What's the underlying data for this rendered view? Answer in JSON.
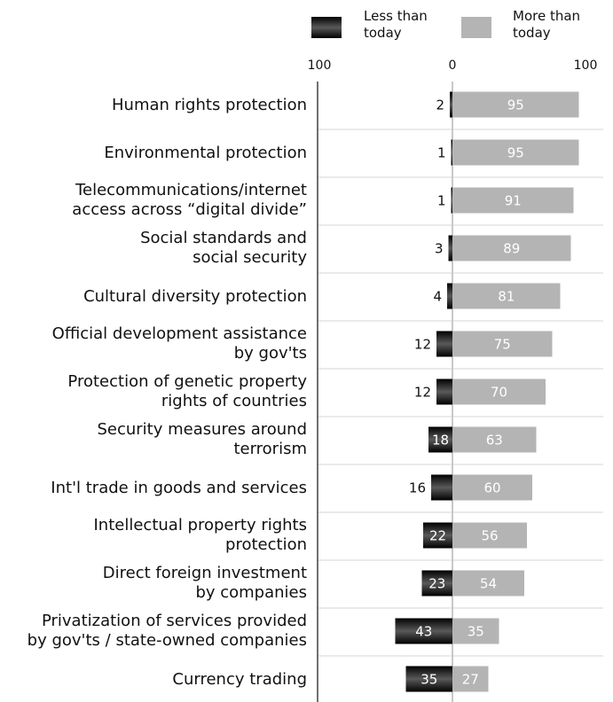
{
  "chart_data": {
    "type": "bar",
    "orientation": "horizontal",
    "stacking": "diverging",
    "categories": [
      [
        "Human rights protection"
      ],
      [
        "Environmental protection"
      ],
      [
        "Telecommunications/internet",
        "access across “digital divide”"
      ],
      [
        "Social standards and",
        "social security"
      ],
      [
        "Cultural diversity protection"
      ],
      [
        "Official development assistance",
        "by gov'ts"
      ],
      [
        "Protection of genetic property",
        "rights of countries"
      ],
      [
        "Security measures around",
        "terrorism"
      ],
      [
        "Int'l trade in goods and services"
      ],
      [
        "Intellectual property rights",
        "protection"
      ],
      [
        "Direct foreign investment",
        "by companies"
      ],
      [
        "Privatization of services provided",
        "by gov'ts / state-owned companies"
      ],
      [
        "Currency trading"
      ]
    ],
    "series": [
      {
        "name": [
          "Less than",
          "today"
        ],
        "direction": "left",
        "color": "#1a1a1a",
        "values": [
          2,
          1,
          1,
          3,
          4,
          12,
          12,
          18,
          16,
          22,
          23,
          43,
          35
        ]
      },
      {
        "name": [
          "More than",
          "today"
        ],
        "direction": "right",
        "color": "#b4b4b4",
        "values": [
          95,
          95,
          91,
          89,
          81,
          75,
          70,
          63,
          60,
          56,
          54,
          35,
          27
        ]
      }
    ],
    "xlim": [
      -100,
      100
    ],
    "tick_labels": [
      "100",
      "0",
      "100"
    ],
    "legend_position": "top"
  }
}
